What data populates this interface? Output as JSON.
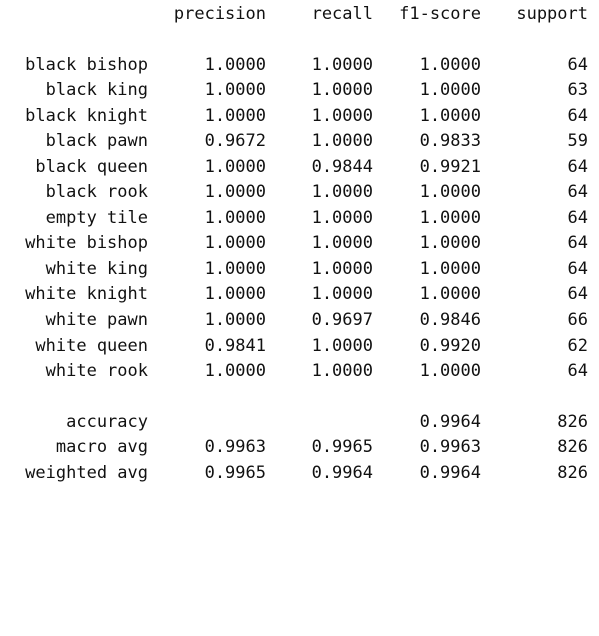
{
  "header": {
    "precision": "precision",
    "recall": "recall",
    "f1_score": "f1-score",
    "support": "support"
  },
  "rows": [
    {
      "label": "black bishop",
      "precision": "1.0000",
      "recall": "1.0000",
      "f1": "1.0000",
      "support": "64"
    },
    {
      "label": "black king",
      "precision": "1.0000",
      "recall": "1.0000",
      "f1": "1.0000",
      "support": "63"
    },
    {
      "label": "black knight",
      "precision": "1.0000",
      "recall": "1.0000",
      "f1": "1.0000",
      "support": "64"
    },
    {
      "label": "black pawn",
      "precision": "0.9672",
      "recall": "1.0000",
      "f1": "0.9833",
      "support": "59"
    },
    {
      "label": "black queen",
      "precision": "1.0000",
      "recall": "0.9844",
      "f1": "0.9921",
      "support": "64"
    },
    {
      "label": "black rook",
      "precision": "1.0000",
      "recall": "1.0000",
      "f1": "1.0000",
      "support": "64"
    },
    {
      "label": "empty tile",
      "precision": "1.0000",
      "recall": "1.0000",
      "f1": "1.0000",
      "support": "64"
    },
    {
      "label": "white bishop",
      "precision": "1.0000",
      "recall": "1.0000",
      "f1": "1.0000",
      "support": "64"
    },
    {
      "label": "white king",
      "precision": "1.0000",
      "recall": "1.0000",
      "f1": "1.0000",
      "support": "64"
    },
    {
      "label": "white knight",
      "precision": "1.0000",
      "recall": "1.0000",
      "f1": "1.0000",
      "support": "64"
    },
    {
      "label": "white pawn",
      "precision": "1.0000",
      "recall": "0.9697",
      "f1": "0.9846",
      "support": "66"
    },
    {
      "label": "white queen",
      "precision": "0.9841",
      "recall": "1.0000",
      "f1": "0.9920",
      "support": "62"
    },
    {
      "label": "white rook",
      "precision": "1.0000",
      "recall": "1.0000",
      "f1": "1.0000",
      "support": "64"
    }
  ],
  "summary": {
    "accuracy": {
      "label": "accuracy",
      "f1": "0.9964",
      "support": "826"
    },
    "macro_avg": {
      "label": "macro avg",
      "precision": "0.9963",
      "recall": "0.9965",
      "f1": "0.9963",
      "support": "826"
    },
    "weighted_avg": {
      "label": "weighted avg",
      "precision": "0.9965",
      "recall": "0.9964",
      "f1": "0.9964",
      "support": "826"
    }
  }
}
